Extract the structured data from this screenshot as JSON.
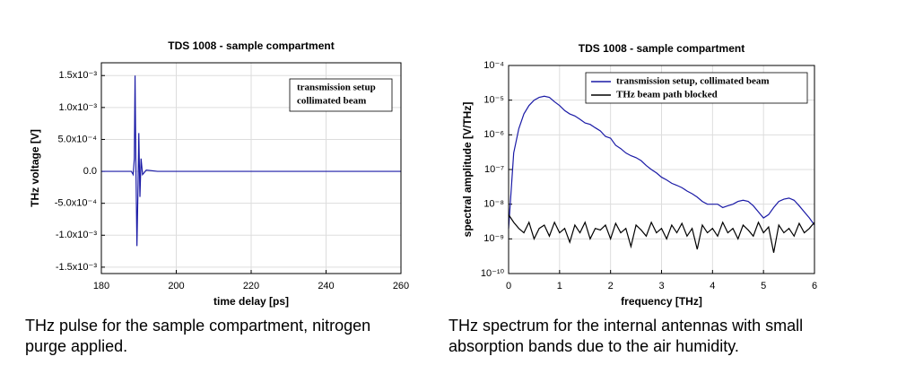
{
  "chart_data": [
    {
      "type": "line",
      "title": "TDS 1008 - sample compartment",
      "x_label": "time delay [ps]",
      "y_label": "THz voltage [V]",
      "annotation": [
        "transmission setup",
        "collimated beam"
      ],
      "caption": [
        "THz pulse for the sample compartment, nitrogen",
        "purge applied."
      ],
      "x": [
        180,
        185,
        187,
        188,
        188.5,
        188.8,
        189,
        189.2,
        189.5,
        189.8,
        190,
        190.3,
        190.6,
        191,
        192,
        195,
        200,
        210,
        220,
        230,
        240,
        250,
        260
      ],
      "series": [
        {
          "color": "#1a1aa6",
          "values": [
            0,
            0,
            0,
            0,
            -5e-05,
            0.0002,
            0.0015,
            0.0002,
            -0.00117,
            -0.0002,
            0.0006,
            -0.0004,
            0.0002,
            -5e-05,
            2e-05,
            0,
            0,
            0,
            0,
            0,
            0,
            0,
            0
          ]
        }
      ],
      "xlim": [
        180,
        260
      ],
      "xticks": [
        180,
        200,
        220,
        240,
        260
      ],
      "ylim": [
        -0.0016,
        0.0017
      ],
      "yticks": [
        {
          "value": 0.0015,
          "label": "1.5x10⁻³"
        },
        {
          "value": 0.001,
          "label": "1.0x10⁻³"
        },
        {
          "value": 0.0005,
          "label": "5.0x10⁻⁴"
        },
        {
          "value": 0,
          "label": "0.0"
        },
        {
          "value": -0.0005,
          "label": "-5.0x10⁻⁴"
        },
        {
          "value": -0.001,
          "label": "-1.0x10⁻³"
        },
        {
          "value": -0.0015,
          "label": "-1.5x10⁻³"
        }
      ],
      "grid": true,
      "log": false
    },
    {
      "type": "line",
      "title": "TDS 1008 - sample compartment",
      "x_label": "frequency [THz]",
      "y_label": "spectral amplitude [V/THz]",
      "caption": [
        "THz spectrum for the internal antennas with small",
        "absorption bands due to the air humidity."
      ],
      "x": [
        0,
        0.1,
        0.2,
        0.3,
        0.4,
        0.5,
        0.6,
        0.7,
        0.8,
        0.9,
        1,
        1.1,
        1.2,
        1.3,
        1.4,
        1.5,
        1.6,
        1.7,
        1.8,
        1.9,
        2,
        2.1,
        2.2,
        2.3,
        2.4,
        2.5,
        2.6,
        2.7,
        2.8,
        2.9,
        3,
        3.1,
        3.2,
        3.3,
        3.4,
        3.5,
        3.6,
        3.7,
        3.8,
        3.9,
        4,
        4.1,
        4.2,
        4.3,
        4.4,
        4.5,
        4.6,
        4.7,
        4.8,
        4.9,
        5,
        5.1,
        5.2,
        5.3,
        5.4,
        5.5,
        5.6,
        5.7,
        5.8,
        5.9,
        6
      ],
      "series": [
        {
          "name": "transmission setup, collimated beam",
          "color": "#1a1aa6",
          "values": [
            2e-09,
            3e-07,
            1.5e-06,
            4e-06,
            7e-06,
            1e-05,
            1.2e-05,
            1.3e-05,
            1.2e-05,
            9e-06,
            7e-06,
            5e-06,
            4e-06,
            3.5e-06,
            2.8e-06,
            2.2e-06,
            2e-06,
            1.6e-06,
            1.3e-06,
            9e-07,
            8e-07,
            5e-07,
            4e-07,
            3e-07,
            2.5e-07,
            2.2e-07,
            1.8e-07,
            1.3e-07,
            1e-07,
            8e-08,
            6e-08,
            5e-08,
            4e-08,
            3.5e-08,
            3e-08,
            2.4e-08,
            2e-08,
            1.6e-08,
            1.2e-08,
            1e-08,
            1e-08,
            1e-08,
            8e-09,
            9e-09,
            1e-08,
            1.2e-08,
            1.3e-08,
            1.2e-08,
            9e-09,
            6e-09,
            4e-09,
            5e-09,
            8e-09,
            1.2e-08,
            1.4e-08,
            1.5e-08,
            1.3e-08,
            9e-09,
            6e-09,
            4e-09,
            2.5e-09
          ]
        },
        {
          "name": "THz beam path blocked",
          "color": "#000000",
          "values": [
            5e-09,
            3e-09,
            2e-09,
            1.5e-09,
            3e-09,
            1e-09,
            2e-09,
            2.5e-09,
            1.2e-09,
            3e-09,
            1.5e-09,
            2e-09,
            8e-10,
            2.5e-09,
            1.5e-09,
            3e-09,
            1e-09,
            2e-09,
            1.8e-09,
            2.5e-09,
            1e-09,
            2.8e-09,
            1.5e-09,
            2e-09,
            6e-10,
            2.5e-09,
            1.8e-09,
            1.2e-09,
            3e-09,
            1.5e-09,
            2e-09,
            1e-09,
            2.5e-09,
            1.5e-09,
            2.8e-09,
            1.2e-09,
            2e-09,
            5e-10,
            2.5e-09,
            1.5e-09,
            2e-09,
            1.2e-09,
            3e-09,
            1.5e-09,
            2e-09,
            1e-09,
            2.5e-09,
            1.8e-09,
            1.2e-09,
            3e-09,
            1.5e-09,
            2.2e-09,
            4e-10,
            2.5e-09,
            1.5e-09,
            2e-09,
            1.2e-09,
            2.8e-09,
            1.5e-09,
            2e-09,
            3e-09
          ]
        }
      ],
      "xlim": [
        0,
        6
      ],
      "xticks": [
        0,
        1,
        2,
        3,
        4,
        5,
        6
      ],
      "ylim": [
        1e-10,
        0.0001
      ],
      "yticks": [
        {
          "value": 1e-10,
          "label": "10⁻¹⁰"
        },
        {
          "value": 1e-09,
          "label": "10⁻⁹"
        },
        {
          "value": 1e-08,
          "label": "10⁻⁸"
        },
        {
          "value": 1e-07,
          "label": "10⁻⁷"
        },
        {
          "value": 1e-06,
          "label": "10⁻⁶"
        },
        {
          "value": 1e-05,
          "label": "10⁻⁵"
        },
        {
          "value": 0.0001,
          "label": "10⁻⁴"
        }
      ],
      "grid": true,
      "log": true,
      "legend": "top-right"
    }
  ]
}
